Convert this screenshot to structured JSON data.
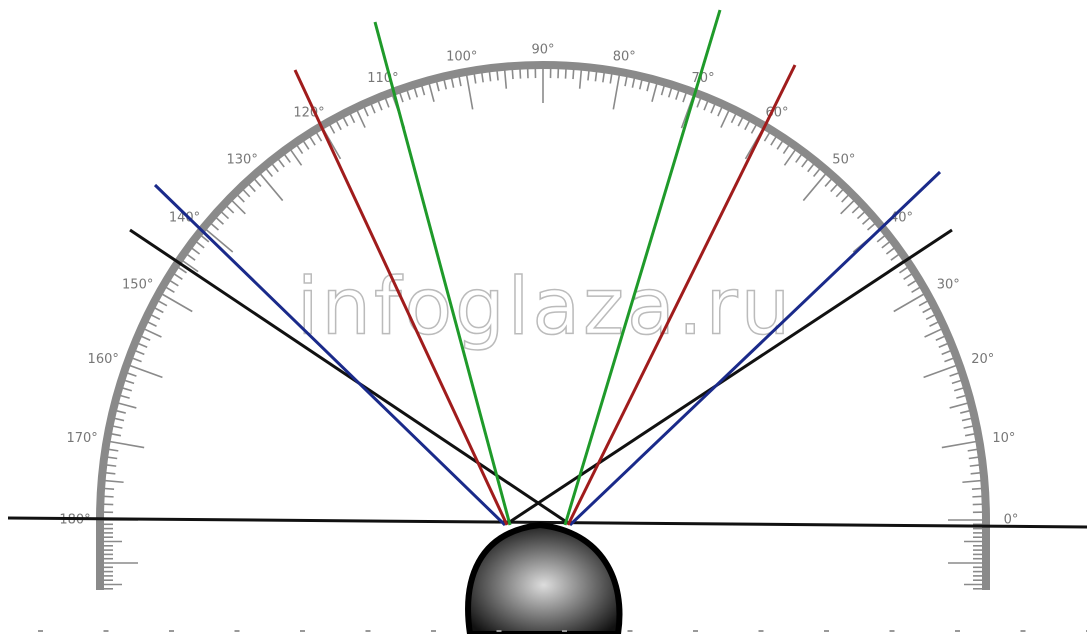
{
  "watermark": "infoglaza.ru",
  "scale_labels": [
    "0°",
    "10°",
    "20°",
    "30°",
    "40°",
    "50°",
    "60°",
    "70°",
    "80°",
    "90°",
    "100°",
    "110°",
    "120°",
    "130°",
    "140°",
    "150°",
    "160°",
    "170°",
    "180°"
  ]
}
